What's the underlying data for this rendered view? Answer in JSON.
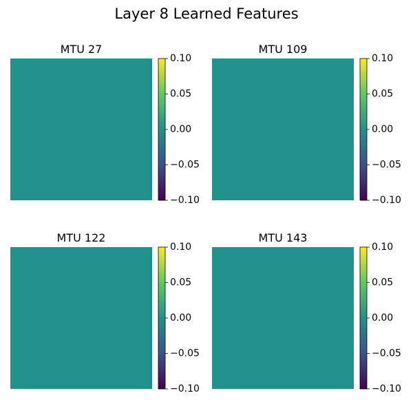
{
  "figure": {
    "title": "Layer 8 Learned Features"
  },
  "chart_data": [
    {
      "type": "heatmap",
      "title": "MTU 27",
      "fill_value": 0.0,
      "colormap": "viridis",
      "colorbar": {
        "range": [
          -0.1,
          0.1
        ],
        "ticks": [
          "0.10",
          "0.05",
          "0.00",
          "−0.05",
          "−0.10"
        ]
      }
    },
    {
      "type": "heatmap",
      "title": "MTU 109",
      "fill_value": 0.0,
      "colormap": "viridis",
      "colorbar": {
        "range": [
          -0.1,
          0.1
        ],
        "ticks": [
          "0.10",
          "0.05",
          "0.00",
          "−0.05",
          "−0.10"
        ]
      }
    },
    {
      "type": "heatmap",
      "title": "MTU 122",
      "fill_value": 0.0,
      "colormap": "viridis",
      "colorbar": {
        "range": [
          -0.1,
          0.1
        ],
        "ticks": [
          "0.10",
          "0.05",
          "0.00",
          "−0.05",
          "−0.10"
        ]
      }
    },
    {
      "type": "heatmap",
      "title": "MTU 143",
      "fill_value": 0.0,
      "colormap": "viridis",
      "colorbar": {
        "range": [
          -0.1,
          0.1
        ],
        "ticks": [
          "0.10",
          "0.05",
          "0.00",
          "−0.05",
          "−0.10"
        ]
      }
    }
  ],
  "colors": {
    "viridis_stops": [
      "#440154",
      "#3b528b",
      "#21918c",
      "#5ec962",
      "#fde725"
    ]
  }
}
